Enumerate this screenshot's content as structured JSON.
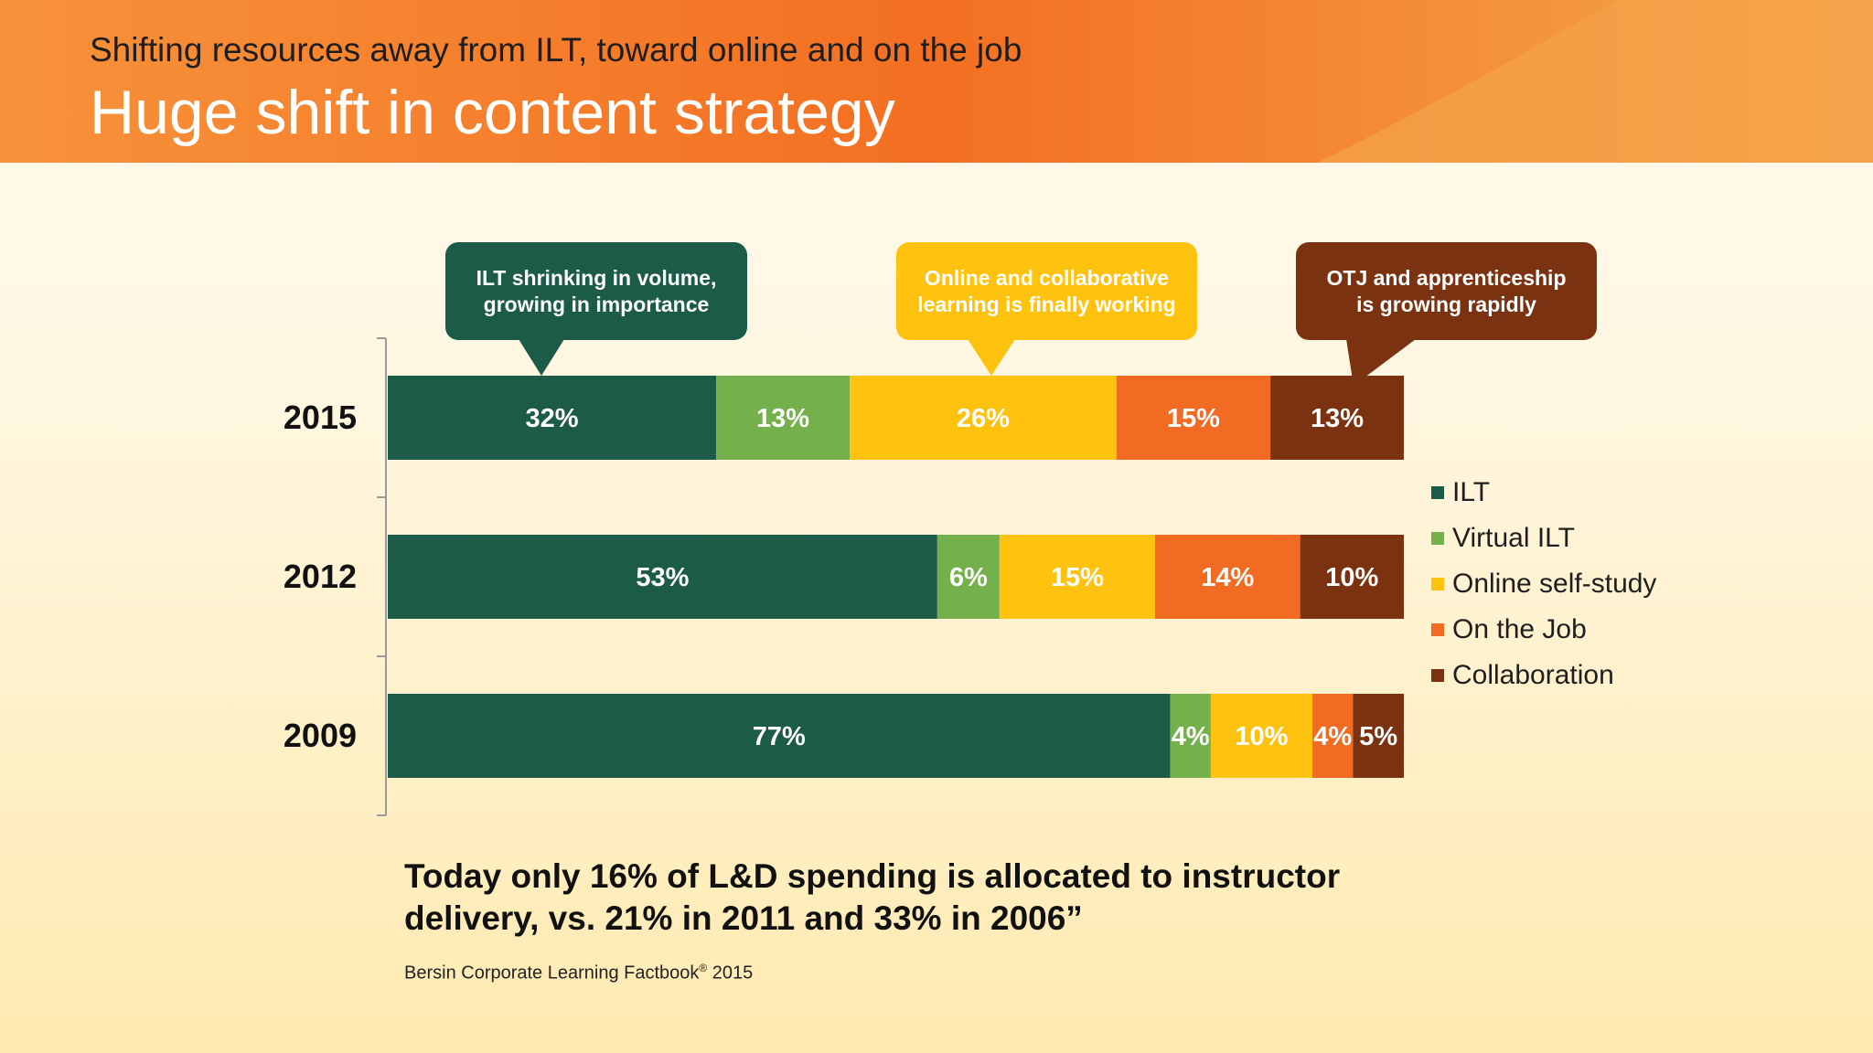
{
  "header": {
    "subtitle": "Shifting resources away from ILT, toward online and on the job",
    "title": "Huge shift in content strategy"
  },
  "callouts": [
    {
      "text": "ILT shrinking in volume,\ngrowing in importance",
      "color": "#1b5b48"
    },
    {
      "text": "Online and collaborative\nlearning is finally working",
      "color": "#ffc20e"
    },
    {
      "text": "OTJ and apprenticeship\nis growing rapidly",
      "color": "#7a3210"
    }
  ],
  "chart_data": {
    "type": "bar",
    "orientation": "horizontal",
    "stacked": true,
    "categories": [
      "2015",
      "2012",
      "2009"
    ],
    "series": [
      {
        "name": "ILT",
        "color": "#1b5b48",
        "values": [
          32,
          53,
          77
        ]
      },
      {
        "name": "Virtual ILT",
        "color": "#74b04c",
        "values": [
          13,
          6,
          4
        ]
      },
      {
        "name": "Online self-study",
        "color": "#ffc20e",
        "values": [
          26,
          15,
          10
        ]
      },
      {
        "name": "On the Job",
        "color": "#f26b22",
        "values": [
          15,
          14,
          4
        ]
      },
      {
        "name": "Collaboration",
        "color": "#7a3210",
        "values": [
          13,
          10,
          5
        ]
      }
    ],
    "legend_position": "right",
    "grid": false
  },
  "quote": "Today only 16% of L&D spending is allocated to instructor delivery, vs. 21% in 2011 and 33% in 2006”",
  "source": {
    "text": "Bersin Corporate Learning Factbook",
    "mark": "®",
    "year": " 2015"
  }
}
